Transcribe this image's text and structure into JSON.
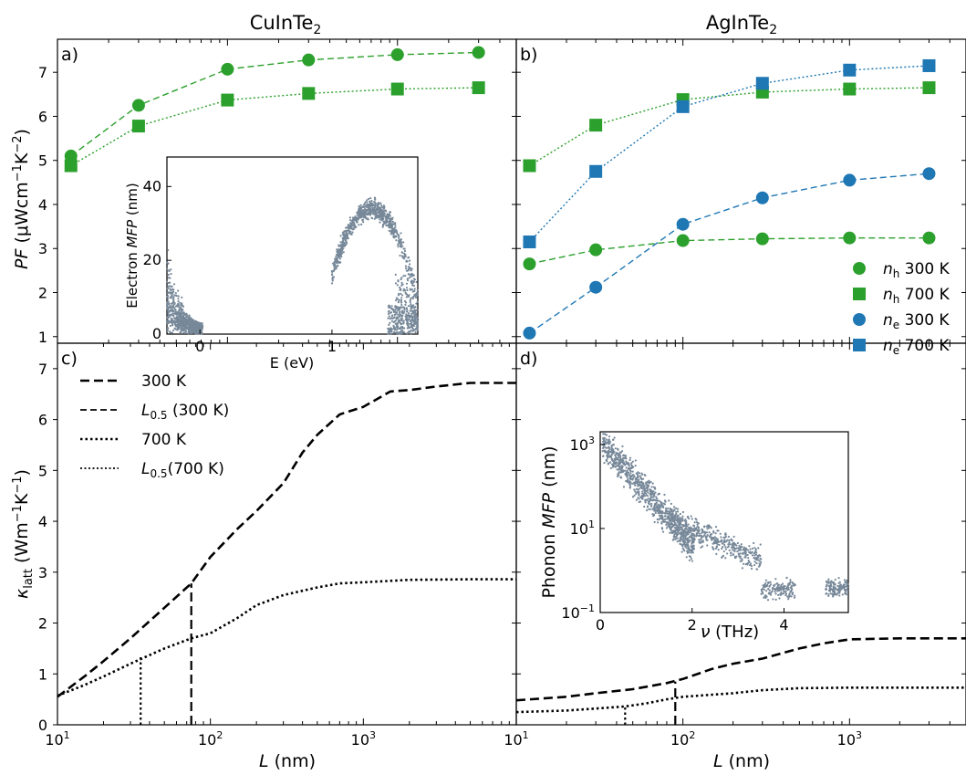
{
  "chart_data": [
    {
      "panel": "a)",
      "type": "line",
      "title": "CuInTe₂",
      "ylabel": "PF (μWcm⁻¹K⁻²)",
      "xscale": "log",
      "xlim": [
        10,
        5000
      ],
      "ylim": [
        0.85,
        7.75
      ],
      "yticks": [
        "1",
        "2",
        "3",
        "4",
        "5",
        "6",
        "7"
      ],
      "series": [
        {
          "name": "n_h 300 K",
          "marker": "circle",
          "linestyle": "dashed",
          "color": "#2ca02c",
          "x": [
            12,
            30,
            100,
            300,
            1000,
            3000
          ],
          "y": [
            5.1,
            6.25,
            7.07,
            7.28,
            7.4,
            7.45
          ]
        },
        {
          "name": "n_h 700 K",
          "marker": "square",
          "linestyle": "dotted",
          "color": "#2ca02c",
          "x": [
            12,
            30,
            100,
            300,
            1000,
            3000
          ],
          "y": [
            4.88,
            5.78,
            6.37,
            6.52,
            6.62,
            6.65
          ]
        }
      ]
    },
    {
      "panel": "b)",
      "type": "line",
      "title": "AgInTe₂",
      "xscale": "log",
      "xlim": [
        10,
        5000
      ],
      "ylim": [
        0.85,
        7.75
      ],
      "series": [
        {
          "name": "n_h 300 K",
          "marker": "circle",
          "linestyle": "dashed",
          "color": "#2ca02c",
          "x": [
            12,
            30,
            100,
            300,
            1000,
            3000
          ],
          "y": [
            2.65,
            2.97,
            3.18,
            3.22,
            3.24,
            3.24
          ]
        },
        {
          "name": "n_h 700 K",
          "marker": "square",
          "linestyle": "dotted",
          "color": "#2ca02c",
          "x": [
            12,
            30,
            100,
            300,
            1000,
            3000
          ],
          "y": [
            4.88,
            5.8,
            6.38,
            6.55,
            6.62,
            6.65
          ]
        },
        {
          "name": "n_e 300 K",
          "marker": "circle",
          "linestyle": "dashed",
          "color": "#1f77b4",
          "x": [
            12,
            30,
            100,
            300,
            1000,
            3000
          ],
          "y": [
            1.08,
            2.12,
            3.55,
            4.15,
            4.55,
            4.7
          ]
        },
        {
          "name": "n_e 700 K",
          "marker": "square",
          "linestyle": "dotted",
          "color": "#1f77b4",
          "x": [
            12,
            30,
            100,
            300,
            1000,
            3000
          ],
          "y": [
            3.15,
            4.75,
            6.22,
            6.75,
            7.05,
            7.15
          ]
        }
      ],
      "legend": {
        "position": "lower-right",
        "entries": [
          {
            "prefix": "n",
            "sub": "h",
            "suffix": " 300 K",
            "marker": "circle",
            "color": "#2ca02c"
          },
          {
            "prefix": "n",
            "sub": "h",
            "suffix": " 700 K",
            "marker": "square",
            "color": "#2ca02c"
          },
          {
            "prefix": "n",
            "sub": "e",
            "suffix": " 300 K",
            "marker": "circle",
            "color": "#1f77b4"
          },
          {
            "prefix": "n",
            "sub": "e",
            "suffix": " 700 K",
            "marker": "square",
            "color": "#1f77b4"
          }
        ]
      }
    },
    {
      "panel": "inset-a",
      "type": "scatter",
      "xlabel": "E (eV)",
      "ylabel": "Electron MFP (nm)",
      "xlim": [
        -0.25,
        1.65
      ],
      "ylim": [
        0,
        48
      ],
      "xticks": [
        "0",
        "1"
      ],
      "yticks": [
        "0",
        "20",
        "40"
      ],
      "color": "#778899",
      "clusters": [
        {
          "x_range": [
            -0.25,
            0.02
          ],
          "y_range": [
            0,
            32
          ],
          "note": "dense near 0, decreasing with E"
        },
        {
          "x_range": [
            0.95,
            1.65
          ],
          "y_range": [
            0,
            45
          ],
          "note": "arc peaking ~35 nm near 1.3 eV"
        }
      ]
    },
    {
      "panel": "c)",
      "type": "line",
      "xlabel": "L (nm)",
      "ylabel": "κ_latt (Wm⁻¹K⁻¹)",
      "xscale": "log",
      "xlim": [
        10,
        10000
      ],
      "ylim": [
        0,
        7.5
      ],
      "yticks": [
        "0",
        "1",
        "2",
        "3",
        "4",
        "5",
        "6",
        "7"
      ],
      "series": [
        {
          "name": "300 K",
          "linestyle": "dashed",
          "x": [
            10,
            15,
            20,
            30,
            50,
            75,
            100,
            150,
            200,
            300,
            400,
            500,
            700,
            1000,
            1500,
            2000,
            3000,
            5000,
            10000
          ],
          "y": [
            0.55,
            0.95,
            1.25,
            1.7,
            2.3,
            2.78,
            3.3,
            3.85,
            4.2,
            4.75,
            5.35,
            5.7,
            6.1,
            6.25,
            6.55,
            6.58,
            6.65,
            6.72,
            6.72
          ]
        },
        {
          "name": "L_0.5 (300 K)",
          "linestyle": "dashed",
          "x": [
            75,
            75
          ],
          "y": [
            0,
            2.78
          ]
        },
        {
          "name": "700 K",
          "linestyle": "dotted",
          "x": [
            10,
            15,
            20,
            30,
            50,
            75,
            100,
            150,
            200,
            300,
            500,
            700,
            1000,
            2000,
            5000,
            10000
          ],
          "y": [
            0.57,
            0.78,
            0.95,
            1.2,
            1.5,
            1.7,
            1.8,
            2.1,
            2.35,
            2.55,
            2.7,
            2.78,
            2.8,
            2.85,
            2.86,
            2.86
          ]
        },
        {
          "name": "L_0.5(700 K)",
          "linestyle": "dotted",
          "x": [
            35,
            35
          ],
          "y": [
            0,
            1.35
          ]
        }
      ],
      "legend": {
        "position": "upper-left",
        "entries": [
          {
            "text": "300 K",
            "style": "dashed-thick"
          },
          {
            "prefix": "L",
            "sub": "0.5",
            "suffix": " (300 K)",
            "style": "dashed"
          },
          {
            "text": "700 K",
            "style": "dotted-thick"
          },
          {
            "prefix": "L",
            "sub": "0.5",
            "suffix": "(700 K)",
            "style": "dotted"
          }
        ]
      }
    },
    {
      "panel": "d)",
      "type": "line",
      "xlabel": "L (nm)",
      "xscale": "log",
      "xlim": [
        10,
        5000
      ],
      "ylim": [
        0,
        7.5
      ],
      "series": [
        {
          "name": "300 K",
          "linestyle": "dashed",
          "x": [
            10,
            20,
            30,
            50,
            80,
            100,
            150,
            200,
            300,
            500,
            700,
            1000,
            2000,
            5000
          ],
          "y": [
            0.48,
            0.55,
            0.62,
            0.7,
            0.82,
            0.9,
            1.1,
            1.2,
            1.3,
            1.5,
            1.6,
            1.68,
            1.7,
            1.7
          ]
        },
        {
          "name": "L_0.5 (300 K)",
          "linestyle": "dashed",
          "x": [
            90,
            90
          ],
          "y": [
            0,
            0.85
          ]
        },
        {
          "name": "700 K",
          "linestyle": "dotted",
          "x": [
            10,
            20,
            30,
            45,
            60,
            80,
            100,
            200,
            300,
            500,
            1000,
            2000,
            5000
          ],
          "y": [
            0.25,
            0.28,
            0.32,
            0.36,
            0.42,
            0.5,
            0.55,
            0.62,
            0.68,
            0.72,
            0.73,
            0.73,
            0.73
          ]
        },
        {
          "name": "L_0.5(700 K)",
          "linestyle": "dotted",
          "x": [
            45,
            45
          ],
          "y": [
            0,
            0.36
          ]
        }
      ]
    },
    {
      "panel": "inset-d",
      "type": "scatter",
      "xlabel": "ν (THz)",
      "ylabel": "Phonon MFP (nm)",
      "yscale": "log",
      "xlim": [
        0,
        5.4
      ],
      "ylim": [
        0.1,
        2000
      ],
      "xticks": [
        "0",
        "2",
        "4"
      ],
      "color": "#778899"
    }
  ],
  "labels": {
    "title_a_base": "CuInTe",
    "title_a_sub": "2",
    "title_b_base": "AgInTe",
    "title_b_sub": "2",
    "panel_a": "a)",
    "panel_b": "b)",
    "panel_c": "c)",
    "panel_d": "d)",
    "ylabel_pf_main": "PF",
    "ylabel_pf_unit_open": " (μWcm",
    "ylabel_pf_exp1": "−1",
    "ylabel_pf_mid": "K",
    "ylabel_pf_exp2": "−2",
    "ylabel_pf_close": ")",
    "ylabel_k_kappa": "κ",
    "ylabel_k_sub": "latt",
    "ylabel_k_unit_open": " (Wm",
    "ylabel_k_exp": "−1",
    "ylabel_k_mid": "K",
    "ylabel_k_close": ")",
    "xlabel_L": "L",
    "xlabel_unit": " (nm)",
    "inset_a_x": "E (eV)",
    "inset_a_y_base": "Electron ",
    "inset_a_y_ital": "MFP",
    "inset_a_y_unit": " (nm)",
    "inset_d_x_nu": "ν",
    "inset_d_x_unit": " (THz)",
    "inset_d_y_base": "Phonon ",
    "inset_d_y_ital": "MFP",
    "inset_d_y_unit": " (nm)",
    "log_tick_base": "10",
    "log_tick_exps": [
      "1",
      "2",
      "3"
    ],
    "log_tick_inset_exps": [
      "−1",
      "1",
      "3"
    ]
  }
}
